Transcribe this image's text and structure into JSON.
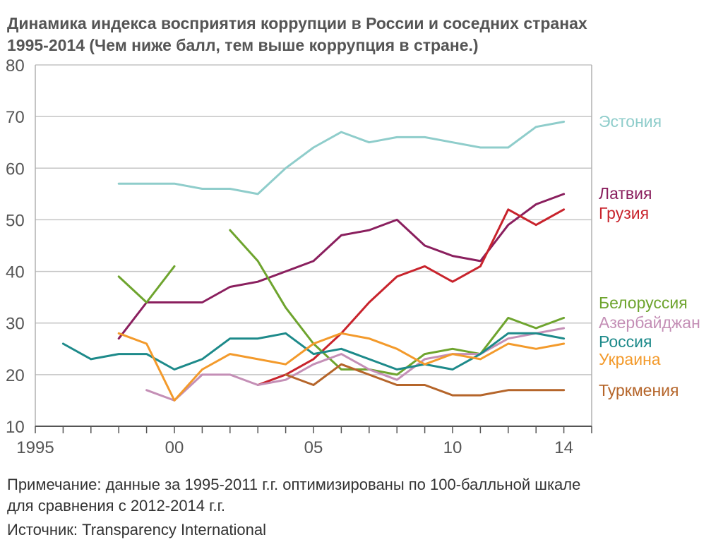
{
  "title_line1": "Динамика индекса восприятия коррупции в России и соседних странах",
  "title_line2": "1995-2014 (Чем ниже балл, тем выше коррупция в стране.)",
  "note_line1": "Примечание: данные за 1995-2011 г.г. оптимизированы по 100-балльной шкале",
  "note_line2": "для сравнения с 2012-2014 г.г.",
  "source": "Источник: Transparency International",
  "chart_data": {
    "type": "line",
    "title": "Динамика индекса восприятия коррупции в России и соседних странах 1995-2014 (Чем ниже балл, тем выше коррупция в стране.)",
    "xlabel": "",
    "ylabel": "",
    "xlim": [
      1995,
      2015
    ],
    "ylim": [
      10,
      80
    ],
    "grid": true,
    "legend": "right, labels at line ends",
    "x_ticks": [
      {
        "value": 1995,
        "label": "1995"
      },
      {
        "value": 2000,
        "label": "00"
      },
      {
        "value": 2005,
        "label": "05"
      },
      {
        "value": 2010,
        "label": "10"
      },
      {
        "value": 2014,
        "label": "14"
      }
    ],
    "y_ticks": [
      10,
      20,
      30,
      40,
      50,
      60,
      70,
      80
    ],
    "series": [
      {
        "name": "Эстония",
        "color": "#8fcdcb",
        "points": [
          [
            1998,
            57
          ],
          [
            1999,
            57
          ],
          [
            2000,
            57
          ],
          [
            2001,
            56
          ],
          [
            2002,
            56
          ],
          [
            2003,
            55
          ],
          [
            2004,
            60
          ],
          [
            2005,
            64
          ],
          [
            2006,
            67
          ],
          [
            2007,
            65
          ],
          [
            2008,
            66
          ],
          [
            2009,
            66
          ],
          [
            2010,
            65
          ],
          [
            2011,
            64
          ],
          [
            2012,
            64
          ],
          [
            2013,
            68
          ],
          [
            2014,
            69
          ]
        ]
      },
      {
        "name": "Латвия",
        "color": "#8a1f5e",
        "points": [
          [
            1998,
            27
          ],
          [
            1999,
            34
          ],
          [
            2000,
            34
          ],
          [
            2001,
            34
          ],
          [
            2002,
            37
          ],
          [
            2003,
            38
          ],
          [
            2004,
            40
          ],
          [
            2005,
            42
          ],
          [
            2006,
            47
          ],
          [
            2007,
            48
          ],
          [
            2008,
            50
          ],
          [
            2009,
            45
          ],
          [
            2010,
            43
          ],
          [
            2011,
            42
          ],
          [
            2012,
            49
          ],
          [
            2013,
            53
          ],
          [
            2014,
            55
          ]
        ]
      },
      {
        "name": "Грузия",
        "color": "#c8232c",
        "points": [
          [
            2003,
            18
          ],
          [
            2004,
            20
          ],
          [
            2005,
            23
          ],
          [
            2006,
            28
          ],
          [
            2007,
            34
          ],
          [
            2008,
            39
          ],
          [
            2009,
            41
          ],
          [
            2010,
            38
          ],
          [
            2011,
            41
          ],
          [
            2012,
            52
          ],
          [
            2013,
            49
          ],
          [
            2014,
            52
          ]
        ]
      },
      {
        "name": "Белоруссия",
        "color": "#6ea42e",
        "segments": [
          [
            [
              1998,
              39
            ],
            [
              1999,
              34
            ],
            [
              2000,
              41
            ]
          ],
          [
            [
              2002,
              48
            ],
            [
              2003,
              42
            ],
            [
              2004,
              33
            ],
            [
              2005,
              26
            ],
            [
              2006,
              21
            ],
            [
              2007,
              21
            ],
            [
              2008,
              20
            ],
            [
              2009,
              24
            ],
            [
              2010,
              25
            ],
            [
              2011,
              24
            ],
            [
              2012,
              31
            ],
            [
              2013,
              29
            ],
            [
              2014,
              31
            ]
          ]
        ]
      },
      {
        "name": "Азербайджан",
        "color": "#c48fb6",
        "points": [
          [
            1999,
            17
          ],
          [
            2000,
            15
          ],
          [
            2001,
            20
          ],
          [
            2002,
            20
          ],
          [
            2003,
            18
          ],
          [
            2004,
            19
          ],
          [
            2005,
            22
          ],
          [
            2006,
            24
          ],
          [
            2007,
            21
          ],
          [
            2008,
            19
          ],
          [
            2009,
            23
          ],
          [
            2010,
            24
          ],
          [
            2011,
            24
          ],
          [
            2012,
            27
          ],
          [
            2013,
            28
          ],
          [
            2014,
            29
          ]
        ]
      },
      {
        "name": "Россия",
        "color": "#1d8a8a",
        "points": [
          [
            1996,
            26
          ],
          [
            1997,
            23
          ],
          [
            1998,
            24
          ],
          [
            1999,
            24
          ],
          [
            2000,
            21
          ],
          [
            2001,
            23
          ],
          [
            2002,
            27
          ],
          [
            2003,
            27
          ],
          [
            2004,
            28
          ],
          [
            2005,
            24
          ],
          [
            2006,
            25
          ],
          [
            2007,
            23
          ],
          [
            2008,
            21
          ],
          [
            2009,
            22
          ],
          [
            2010,
            21
          ],
          [
            2011,
            24
          ],
          [
            2012,
            28
          ],
          [
            2013,
            28
          ],
          [
            2014,
            27
          ]
        ]
      },
      {
        "name": "Украина",
        "color": "#f39a2b",
        "points": [
          [
            1998,
            28
          ],
          [
            1999,
            26
          ],
          [
            2000,
            15
          ],
          [
            2001,
            21
          ],
          [
            2002,
            24
          ],
          [
            2003,
            23
          ],
          [
            2004,
            22
          ],
          [
            2005,
            26
          ],
          [
            2006,
            28
          ],
          [
            2007,
            27
          ],
          [
            2008,
            25
          ],
          [
            2009,
            22
          ],
          [
            2010,
            24
          ],
          [
            2011,
            23
          ],
          [
            2012,
            26
          ],
          [
            2013,
            25
          ],
          [
            2014,
            26
          ]
        ]
      },
      {
        "name": "Туркмения",
        "color": "#b5652a",
        "points": [
          [
            2004,
            20
          ],
          [
            2005,
            18
          ],
          [
            2006,
            22
          ],
          [
            2007,
            20
          ],
          [
            2008,
            18
          ],
          [
            2009,
            18
          ],
          [
            2010,
            16
          ],
          [
            2011,
            16
          ],
          [
            2012,
            17
          ],
          [
            2013,
            17
          ],
          [
            2014,
            17
          ]
        ]
      }
    ]
  }
}
